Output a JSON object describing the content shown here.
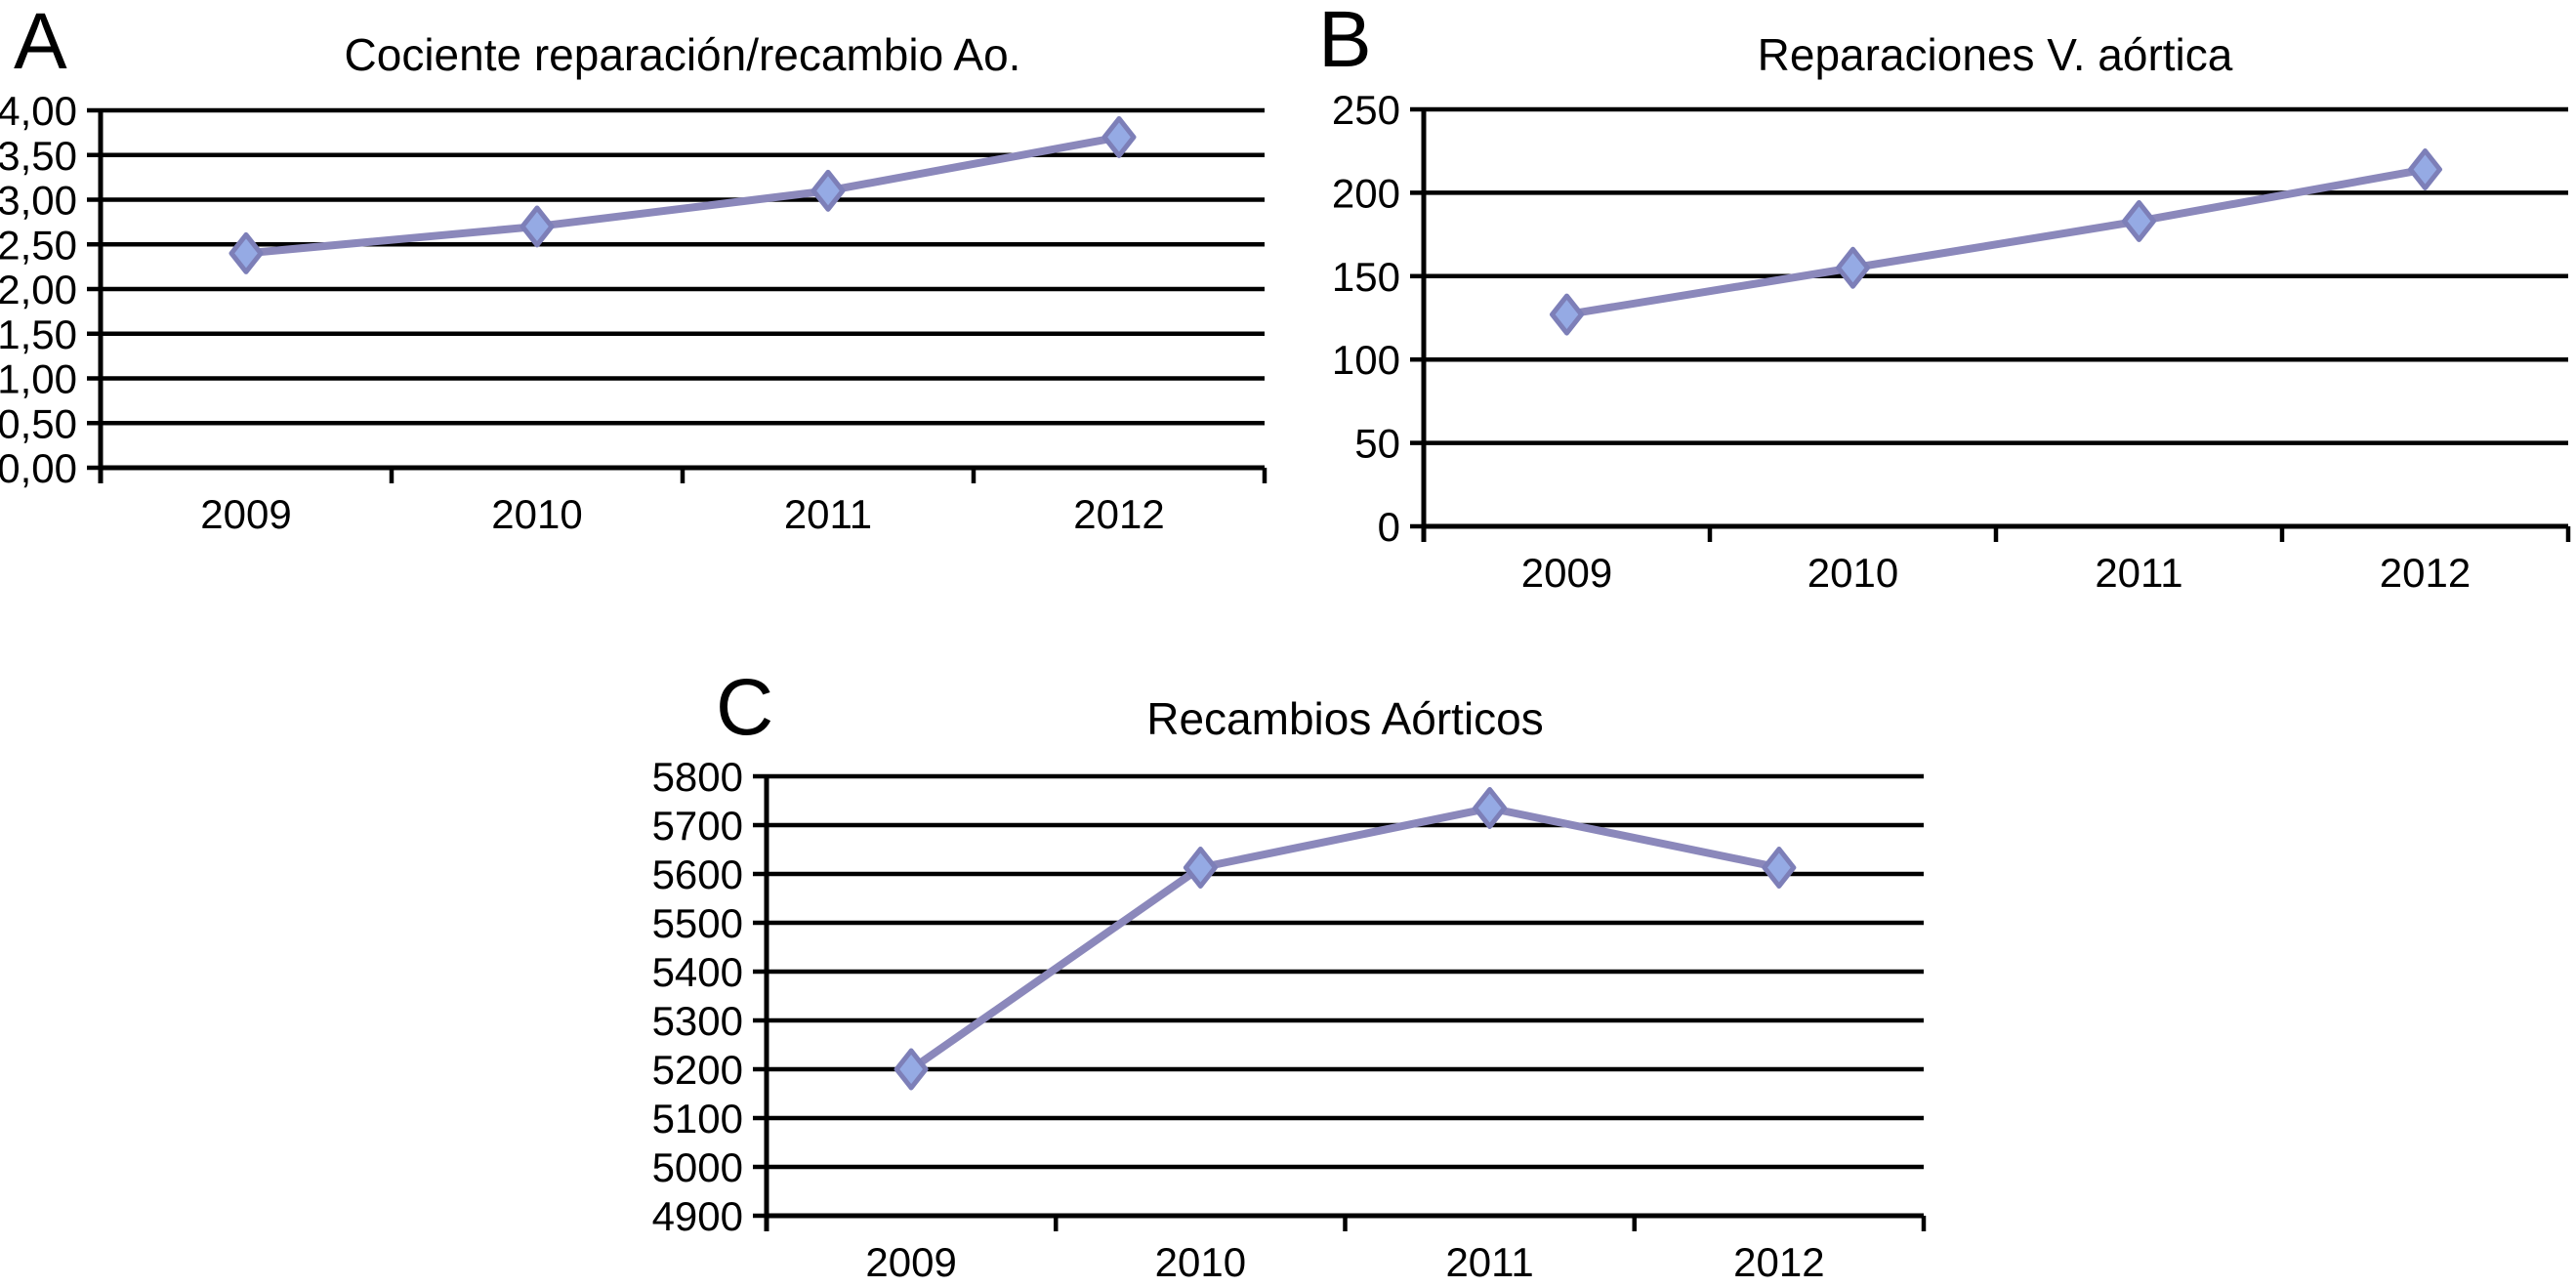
{
  "figure": {
    "style": {
      "background": "#ffffff",
      "series_color": "#8b88bb",
      "marker_fill": "#95aae4",
      "marker_stroke": "#7d7fb8",
      "grid_color": "#000000",
      "text_color": "#000000"
    }
  },
  "chart_data": [
    {
      "panel_label": "A",
      "type": "line",
      "title": "Cociente reparación/recambio Ao.",
      "categories": [
        "2009",
        "2010",
        "2011",
        "2012"
      ],
      "values": [
        2.4,
        2.7,
        3.1,
        3.7
      ],
      "ylim": [
        0,
        4
      ],
      "ystep": 0.5,
      "ytick_labels": [
        "0,00",
        "0,50",
        "1,00",
        "1,50",
        "2,00",
        "2,50",
        "3,00",
        "3,50",
        "4,00"
      ],
      "xlabel": "",
      "ylabel": "",
      "grid": "horizontal",
      "legend": "none",
      "marker": "diamond"
    },
    {
      "panel_label": "B",
      "type": "line",
      "title": "Reparaciones V. aórtica",
      "categories": [
        "2009",
        "2010",
        "2011",
        "2012"
      ],
      "values": [
        127,
        155,
        183,
        214
      ],
      "ylim": [
        0,
        250
      ],
      "ystep": 50,
      "ytick_labels": [
        "0",
        "50",
        "100",
        "150",
        "200",
        "250"
      ],
      "xlabel": "",
      "ylabel": "",
      "grid": "horizontal",
      "legend": "none",
      "marker": "diamond"
    },
    {
      "panel_label": "C",
      "type": "line",
      "title": "Recambios Aórticos",
      "categories": [
        "2009",
        "2010",
        "2011",
        "2012"
      ],
      "values": [
        5200,
        5613,
        5735,
        5613
      ],
      "ylim": [
        4900,
        5800
      ],
      "ystep": 100,
      "ytick_labels": [
        "4900",
        "5000",
        "5100",
        "5200",
        "5300",
        "5400",
        "5500",
        "5600",
        "5700",
        "5800"
      ],
      "xlabel": "",
      "ylabel": "",
      "grid": "horizontal",
      "legend": "none",
      "marker": "diamond"
    }
  ]
}
